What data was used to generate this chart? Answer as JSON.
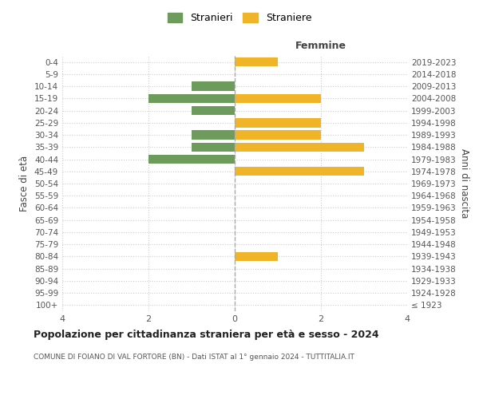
{
  "age_groups": [
    "100+",
    "95-99",
    "90-94",
    "85-89",
    "80-84",
    "75-79",
    "70-74",
    "65-69",
    "60-64",
    "55-59",
    "50-54",
    "45-49",
    "40-44",
    "35-39",
    "30-34",
    "25-29",
    "20-24",
    "15-19",
    "10-14",
    "5-9",
    "0-4"
  ],
  "birth_years": [
    "≤ 1923",
    "1924-1928",
    "1929-1933",
    "1934-1938",
    "1939-1943",
    "1944-1948",
    "1949-1953",
    "1954-1958",
    "1959-1963",
    "1964-1968",
    "1969-1973",
    "1974-1978",
    "1979-1983",
    "1984-1988",
    "1989-1993",
    "1994-1998",
    "1999-2003",
    "2004-2008",
    "2009-2013",
    "2014-2018",
    "2019-2023"
  ],
  "stranieri": [
    0,
    0,
    0,
    0,
    0,
    0,
    0,
    0,
    0,
    0,
    0,
    0,
    2,
    1,
    1,
    0,
    1,
    2,
    1,
    0,
    0
  ],
  "straniere": [
    0,
    0,
    0,
    0,
    1,
    0,
    0,
    0,
    0,
    0,
    0,
    3,
    0,
    3,
    2,
    2,
    0,
    2,
    0,
    0,
    1
  ],
  "color_stranieri": "#6d9b5c",
  "color_straniere": "#f0b429",
  "xlim": 4,
  "title": "Popolazione per cittadinanza straniera per età e sesso - 2024",
  "subtitle": "COMUNE DI FOIANO DI VAL FORTORE (BN) - Dati ISTAT al 1° gennaio 2024 - TUTTITALIA.IT",
  "ylabel_left": "Fasce di età",
  "ylabel_right": "Anni di nascita",
  "xlabel_right": "Femmine",
  "legend_stranieri": "Stranieri",
  "legend_straniere": "Straniere",
  "bg_color": "#ffffff",
  "grid_color": "#cccccc",
  "bar_height": 0.75
}
